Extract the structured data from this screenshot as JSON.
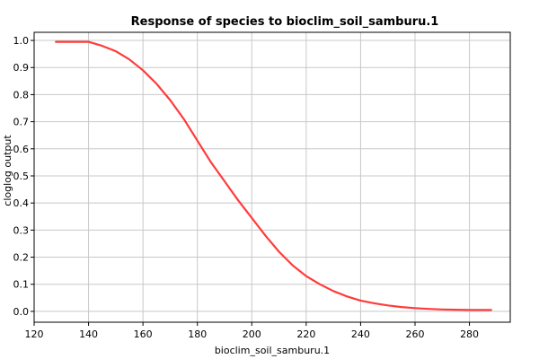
{
  "chart_data": {
    "type": "line",
    "title": "Response of species to bioclim_soil_samburu.1",
    "xlabel": "bioclim_soil_samburu.1",
    "ylabel": "cloglog output",
    "xlim": [
      120,
      295
    ],
    "ylim": [
      -0.04,
      1.03
    ],
    "x_ticks": [
      120,
      140,
      160,
      180,
      200,
      220,
      240,
      260,
      280
    ],
    "y_ticks": [
      "0.0",
      "0.1",
      "0.2",
      "0.3",
      "0.4",
      "0.5",
      "0.6",
      "0.7",
      "0.8",
      "0.9",
      "1.0"
    ],
    "grid": true,
    "series": [
      {
        "color": "#ff3b3b",
        "x": [
          128,
          134,
          140,
          145,
          150,
          155,
          160,
          165,
          170,
          175,
          180,
          185,
          190,
          195,
          200,
          205,
          210,
          215,
          220,
          225,
          230,
          235,
          240,
          245,
          250,
          255,
          260,
          265,
          270,
          275,
          280,
          285,
          288
        ],
        "y": [
          0.995,
          0.995,
          0.995,
          0.98,
          0.96,
          0.93,
          0.89,
          0.84,
          0.78,
          0.71,
          0.63,
          0.55,
          0.48,
          0.41,
          0.345,
          0.28,
          0.22,
          0.17,
          0.13,
          0.1,
          0.075,
          0.055,
          0.04,
          0.03,
          0.022,
          0.016,
          0.012,
          0.009,
          0.007,
          0.006,
          0.005,
          0.005,
          0.005
        ]
      }
    ]
  }
}
